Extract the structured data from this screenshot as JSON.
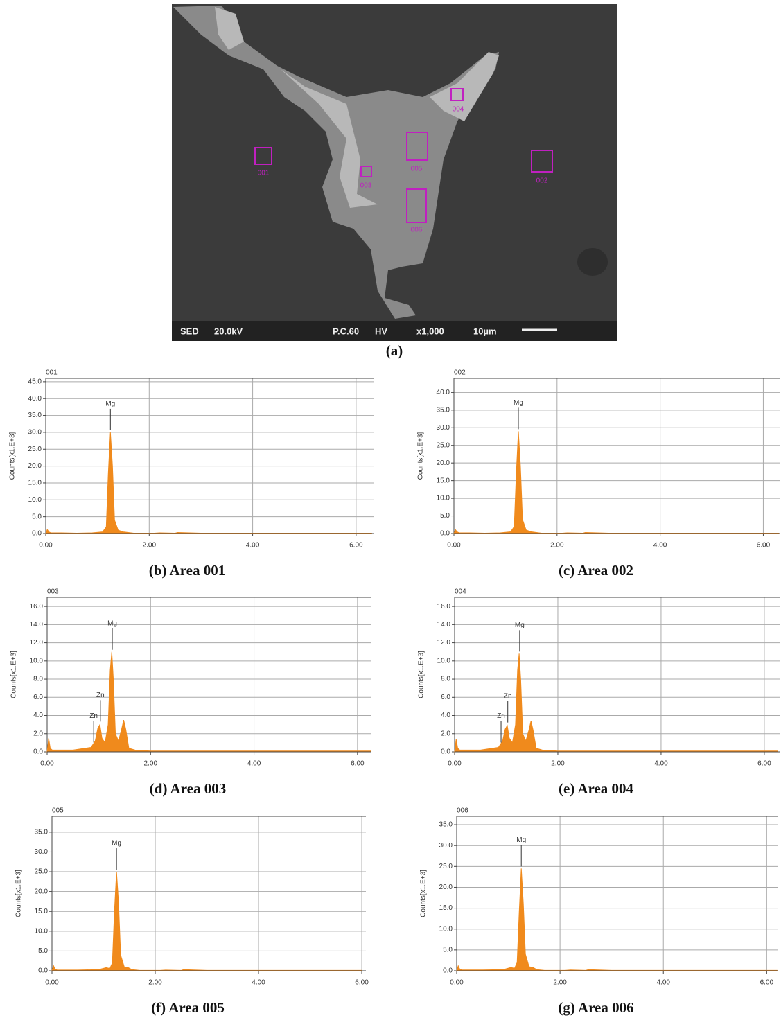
{
  "sem": {
    "areas": [
      "001",
      "002",
      "003",
      "004",
      "005",
      "006"
    ],
    "info": [
      "SED",
      "20.0kV",
      "P.C.60",
      "HV",
      "x1,000",
      "10µm"
    ],
    "caption": "(a)"
  },
  "chart_data": [
    {
      "type": "area",
      "title": "001",
      "ylabel": "Counts[x1.E+3]",
      "caption": "(b) Area 001",
      "color": "#f08a1c",
      "grid": true,
      "x": [
        0,
        0.03,
        0.06,
        0.1,
        0.3,
        0.6,
        0.9,
        1.1,
        1.17,
        1.21,
        1.25,
        1.29,
        1.33,
        1.4,
        1.5,
        1.7,
        2.1,
        2.2,
        2.5,
        2.55,
        3.0,
        6.3
      ],
      "values": [
        0,
        1.2,
        0.5,
        0.2,
        0.2,
        0.1,
        0.2,
        0.5,
        2,
        18,
        30,
        20,
        4,
        1,
        0.5,
        0.1,
        0.1,
        0.2,
        0.1,
        0.3,
        0.1,
        0.1
      ],
      "annotations": [
        {
          "text": "Mg",
          "x": 1.25,
          "y": 30
        }
      ],
      "xlim": [
        0,
        6.35
      ],
      "ylim": [
        0,
        46
      ],
      "xticks": [
        {
          "value": 0,
          "label": "0.00"
        },
        {
          "value": 2,
          "label": "2.00"
        },
        {
          "value": 4,
          "label": "4.00"
        },
        {
          "value": 6,
          "label": "6.00"
        }
      ],
      "yticks": [
        {
          "value": 0,
          "label": "0.0"
        },
        {
          "value": 5,
          "label": "5.0"
        },
        {
          "value": 10,
          "label": "10.0"
        },
        {
          "value": 15,
          "label": "15.0"
        },
        {
          "value": 20,
          "label": "20.0"
        },
        {
          "value": 25,
          "label": "25.0"
        },
        {
          "value": 30,
          "label": "30.0"
        },
        {
          "value": 35,
          "label": "35.0"
        },
        {
          "value": 40,
          "label": "40.0"
        },
        {
          "value": 45,
          "label": "45.0"
        }
      ]
    },
    {
      "type": "area",
      "title": "002",
      "ylabel": "Counts[x1.E+3]",
      "caption": "(c) Area 002",
      "color": "#f08a1c",
      "grid": true,
      "x": [
        0,
        0.03,
        0.06,
        0.1,
        0.3,
        0.6,
        0.9,
        1.1,
        1.17,
        1.21,
        1.25,
        1.29,
        1.33,
        1.4,
        1.5,
        1.7,
        2.1,
        2.2,
        2.5,
        2.55,
        3.0,
        6.3
      ],
      "values": [
        0,
        1.1,
        0.5,
        0.2,
        0.2,
        0.1,
        0.2,
        0.5,
        2,
        17,
        29,
        19,
        4,
        1,
        0.5,
        0.1,
        0.1,
        0.2,
        0.1,
        0.3,
        0.1,
        0.1
      ],
      "annotations": [
        {
          "text": "Mg",
          "x": 1.25,
          "y": 29
        }
      ],
      "xlim": [
        0,
        6.33
      ],
      "ylim": [
        0,
        44
      ],
      "xticks": [
        {
          "value": 0,
          "label": "0.00"
        },
        {
          "value": 2,
          "label": "2.00"
        },
        {
          "value": 4,
          "label": "4.00"
        },
        {
          "value": 6,
          "label": "6.00"
        }
      ],
      "yticks": [
        {
          "value": 0,
          "label": "0.0"
        },
        {
          "value": 5,
          "label": "5.0"
        },
        {
          "value": 10,
          "label": "10.0"
        },
        {
          "value": 15,
          "label": "15.0"
        },
        {
          "value": 20,
          "label": "20.0"
        },
        {
          "value": 25,
          "label": "25.0"
        },
        {
          "value": 30,
          "label": "30.0"
        },
        {
          "value": 35,
          "label": "35.0"
        },
        {
          "value": 40,
          "label": "40.0"
        }
      ]
    },
    {
      "type": "area",
      "title": "003",
      "ylabel": "Counts[x1.E+3]",
      "caption": "(d) Area 003",
      "color": "#f08a1c",
      "grid": true,
      "x": [
        0,
        0.03,
        0.06,
        0.1,
        0.5,
        0.85,
        0.93,
        0.98,
        1.02,
        1.06,
        1.12,
        1.18,
        1.22,
        1.25,
        1.28,
        1.32,
        1.38,
        1.44,
        1.48,
        1.52,
        1.58,
        1.7,
        2.0,
        6.25
      ],
      "values": [
        0,
        1.5,
        0.4,
        0.2,
        0.2,
        0.5,
        1.2,
        2.6,
        3.0,
        1.5,
        1.0,
        3,
        9,
        11,
        8,
        2,
        1.2,
        2.5,
        3.5,
        2.5,
        0.4,
        0.2,
        0.1,
        0.1
      ],
      "annotations": [
        {
          "text": "Zn",
          "x": 0.9,
          "y": 0.8
        },
        {
          "text": "Zn",
          "x": 1.03,
          "y": 3.1
        },
        {
          "text": "Mg",
          "x": 1.26,
          "y": 11
        }
      ],
      "xlim": [
        0,
        6.27
      ],
      "ylim": [
        0,
        17
      ],
      "xticks": [
        {
          "value": 0,
          "label": "0.00"
        },
        {
          "value": 2,
          "label": "2.00"
        },
        {
          "value": 4,
          "label": "4.00"
        },
        {
          "value": 6,
          "label": "6.00"
        }
      ],
      "yticks": [
        {
          "value": 0,
          "label": "0.0"
        },
        {
          "value": 2,
          "label": "2.0"
        },
        {
          "value": 4,
          "label": "4.0"
        },
        {
          "value": 6,
          "label": "6.0"
        },
        {
          "value": 8,
          "label": "8.0"
        },
        {
          "value": 10,
          "label": "10.0"
        },
        {
          "value": 12,
          "label": "12.0"
        },
        {
          "value": 14,
          "label": "14.0"
        },
        {
          "value": 16,
          "label": "16.0"
        }
      ]
    },
    {
      "type": "area",
      "title": "004",
      "ylabel": "Counts[x1.E+3]",
      "caption": "(e) Area 004",
      "color": "#f08a1c",
      "grid": true,
      "x": [
        0,
        0.03,
        0.06,
        0.1,
        0.5,
        0.85,
        0.93,
        0.98,
        1.02,
        1.06,
        1.12,
        1.18,
        1.22,
        1.25,
        1.28,
        1.32,
        1.38,
        1.44,
        1.48,
        1.52,
        1.58,
        1.7,
        2.0,
        6.25
      ],
      "values": [
        0,
        1.4,
        0.4,
        0.2,
        0.2,
        0.5,
        1.2,
        2.5,
        2.9,
        1.5,
        1.0,
        3,
        9,
        10.8,
        8,
        2,
        1.2,
        2.4,
        3.4,
        2.4,
        0.4,
        0.2,
        0.1,
        0.1
      ],
      "annotations": [
        {
          "text": "Zn",
          "x": 0.9,
          "y": 0.8
        },
        {
          "text": "Zn",
          "x": 1.03,
          "y": 3.0
        },
        {
          "text": "Mg",
          "x": 1.26,
          "y": 10.8
        }
      ],
      "xlim": [
        0,
        6.31
      ],
      "ylim": [
        0,
        17
      ],
      "xticks": [
        {
          "value": 0,
          "label": "0.00"
        },
        {
          "value": 2,
          "label": "2.00"
        },
        {
          "value": 4,
          "label": "4.00"
        },
        {
          "value": 6,
          "label": "6.00"
        }
      ],
      "yticks": [
        {
          "value": 0,
          "label": "0.0"
        },
        {
          "value": 2,
          "label": "2.0"
        },
        {
          "value": 4,
          "label": "4.0"
        },
        {
          "value": 6,
          "label": "6.0"
        },
        {
          "value": 8,
          "label": "8.0"
        },
        {
          "value": 10,
          "label": "10.0"
        },
        {
          "value": 12,
          "label": "12.0"
        },
        {
          "value": 14,
          "label": "14.0"
        },
        {
          "value": 16,
          "label": "16.0"
        }
      ]
    },
    {
      "type": "area",
      "title": "005",
      "ylabel": "Counts[x1.E+3]",
      "caption": "(f) Area 005",
      "color": "#f08a1c",
      "grid": true,
      "x": [
        0,
        0.03,
        0.06,
        0.1,
        0.5,
        0.9,
        1.05,
        1.12,
        1.17,
        1.21,
        1.25,
        1.29,
        1.33,
        1.4,
        1.48,
        1.55,
        1.7,
        2.1,
        2.2,
        2.5,
        2.55,
        3.0,
        6.0
      ],
      "values": [
        0,
        1.3,
        0.4,
        0.2,
        0.2,
        0.3,
        0.8,
        0.6,
        2,
        15,
        25,
        17,
        4,
        1,
        0.8,
        0.3,
        0.1,
        0.1,
        0.2,
        0.1,
        0.3,
        0.1,
        0.1
      ],
      "annotations": [
        {
          "text": "Mg",
          "x": 1.25,
          "y": 25
        }
      ],
      "xlim": [
        0,
        6.08
      ],
      "ylim": [
        0,
        39
      ],
      "xticks": [
        {
          "value": 0,
          "label": "0.00"
        },
        {
          "value": 2,
          "label": "2.00"
        },
        {
          "value": 4,
          "label": "4.00"
        },
        {
          "value": 6,
          "label": "6.00"
        }
      ],
      "yticks": [
        {
          "value": 0,
          "label": "0.0"
        },
        {
          "value": 5,
          "label": "5.0"
        },
        {
          "value": 10,
          "label": "10.0"
        },
        {
          "value": 15,
          "label": "15.0"
        },
        {
          "value": 20,
          "label": "20.0"
        },
        {
          "value": 25,
          "label": "25.0"
        },
        {
          "value": 30,
          "label": "30.0"
        },
        {
          "value": 35,
          "label": "35.0"
        }
      ]
    },
    {
      "type": "area",
      "title": "006",
      "ylabel": "Counts[x1.E+3]",
      "caption": "(g) Area 006",
      "color": "#f08a1c",
      "grid": true,
      "x": [
        0,
        0.03,
        0.06,
        0.1,
        0.5,
        0.9,
        1.05,
        1.12,
        1.17,
        1.21,
        1.25,
        1.29,
        1.33,
        1.4,
        1.48,
        1.55,
        1.7,
        2.1,
        2.2,
        2.5,
        2.55,
        3.0,
        6.2
      ],
      "values": [
        0,
        1.2,
        0.4,
        0.2,
        0.2,
        0.3,
        0.8,
        0.6,
        2,
        14,
        24.5,
        16,
        4,
        1,
        0.8,
        0.3,
        0.1,
        0.1,
        0.2,
        0.1,
        0.3,
        0.1,
        0.1
      ],
      "annotations": [
        {
          "text": "Mg",
          "x": 1.25,
          "y": 24.5
        }
      ],
      "xlim": [
        0,
        6.21
      ],
      "ylim": [
        0,
        37
      ],
      "xticks": [
        {
          "value": 0,
          "label": "0.00"
        },
        {
          "value": 2,
          "label": "2.00"
        },
        {
          "value": 4,
          "label": "4.00"
        },
        {
          "value": 6,
          "label": "6.00"
        }
      ],
      "yticks": [
        {
          "value": 0,
          "label": "0.0"
        },
        {
          "value": 5,
          "label": "5.0"
        },
        {
          "value": 10,
          "label": "10.0"
        },
        {
          "value": 15,
          "label": "15.0"
        },
        {
          "value": 20,
          "label": "20.0"
        },
        {
          "value": 25,
          "label": "25.0"
        },
        {
          "value": 30,
          "label": "30.0"
        },
        {
          "value": 35,
          "label": "35.0"
        }
      ]
    }
  ]
}
